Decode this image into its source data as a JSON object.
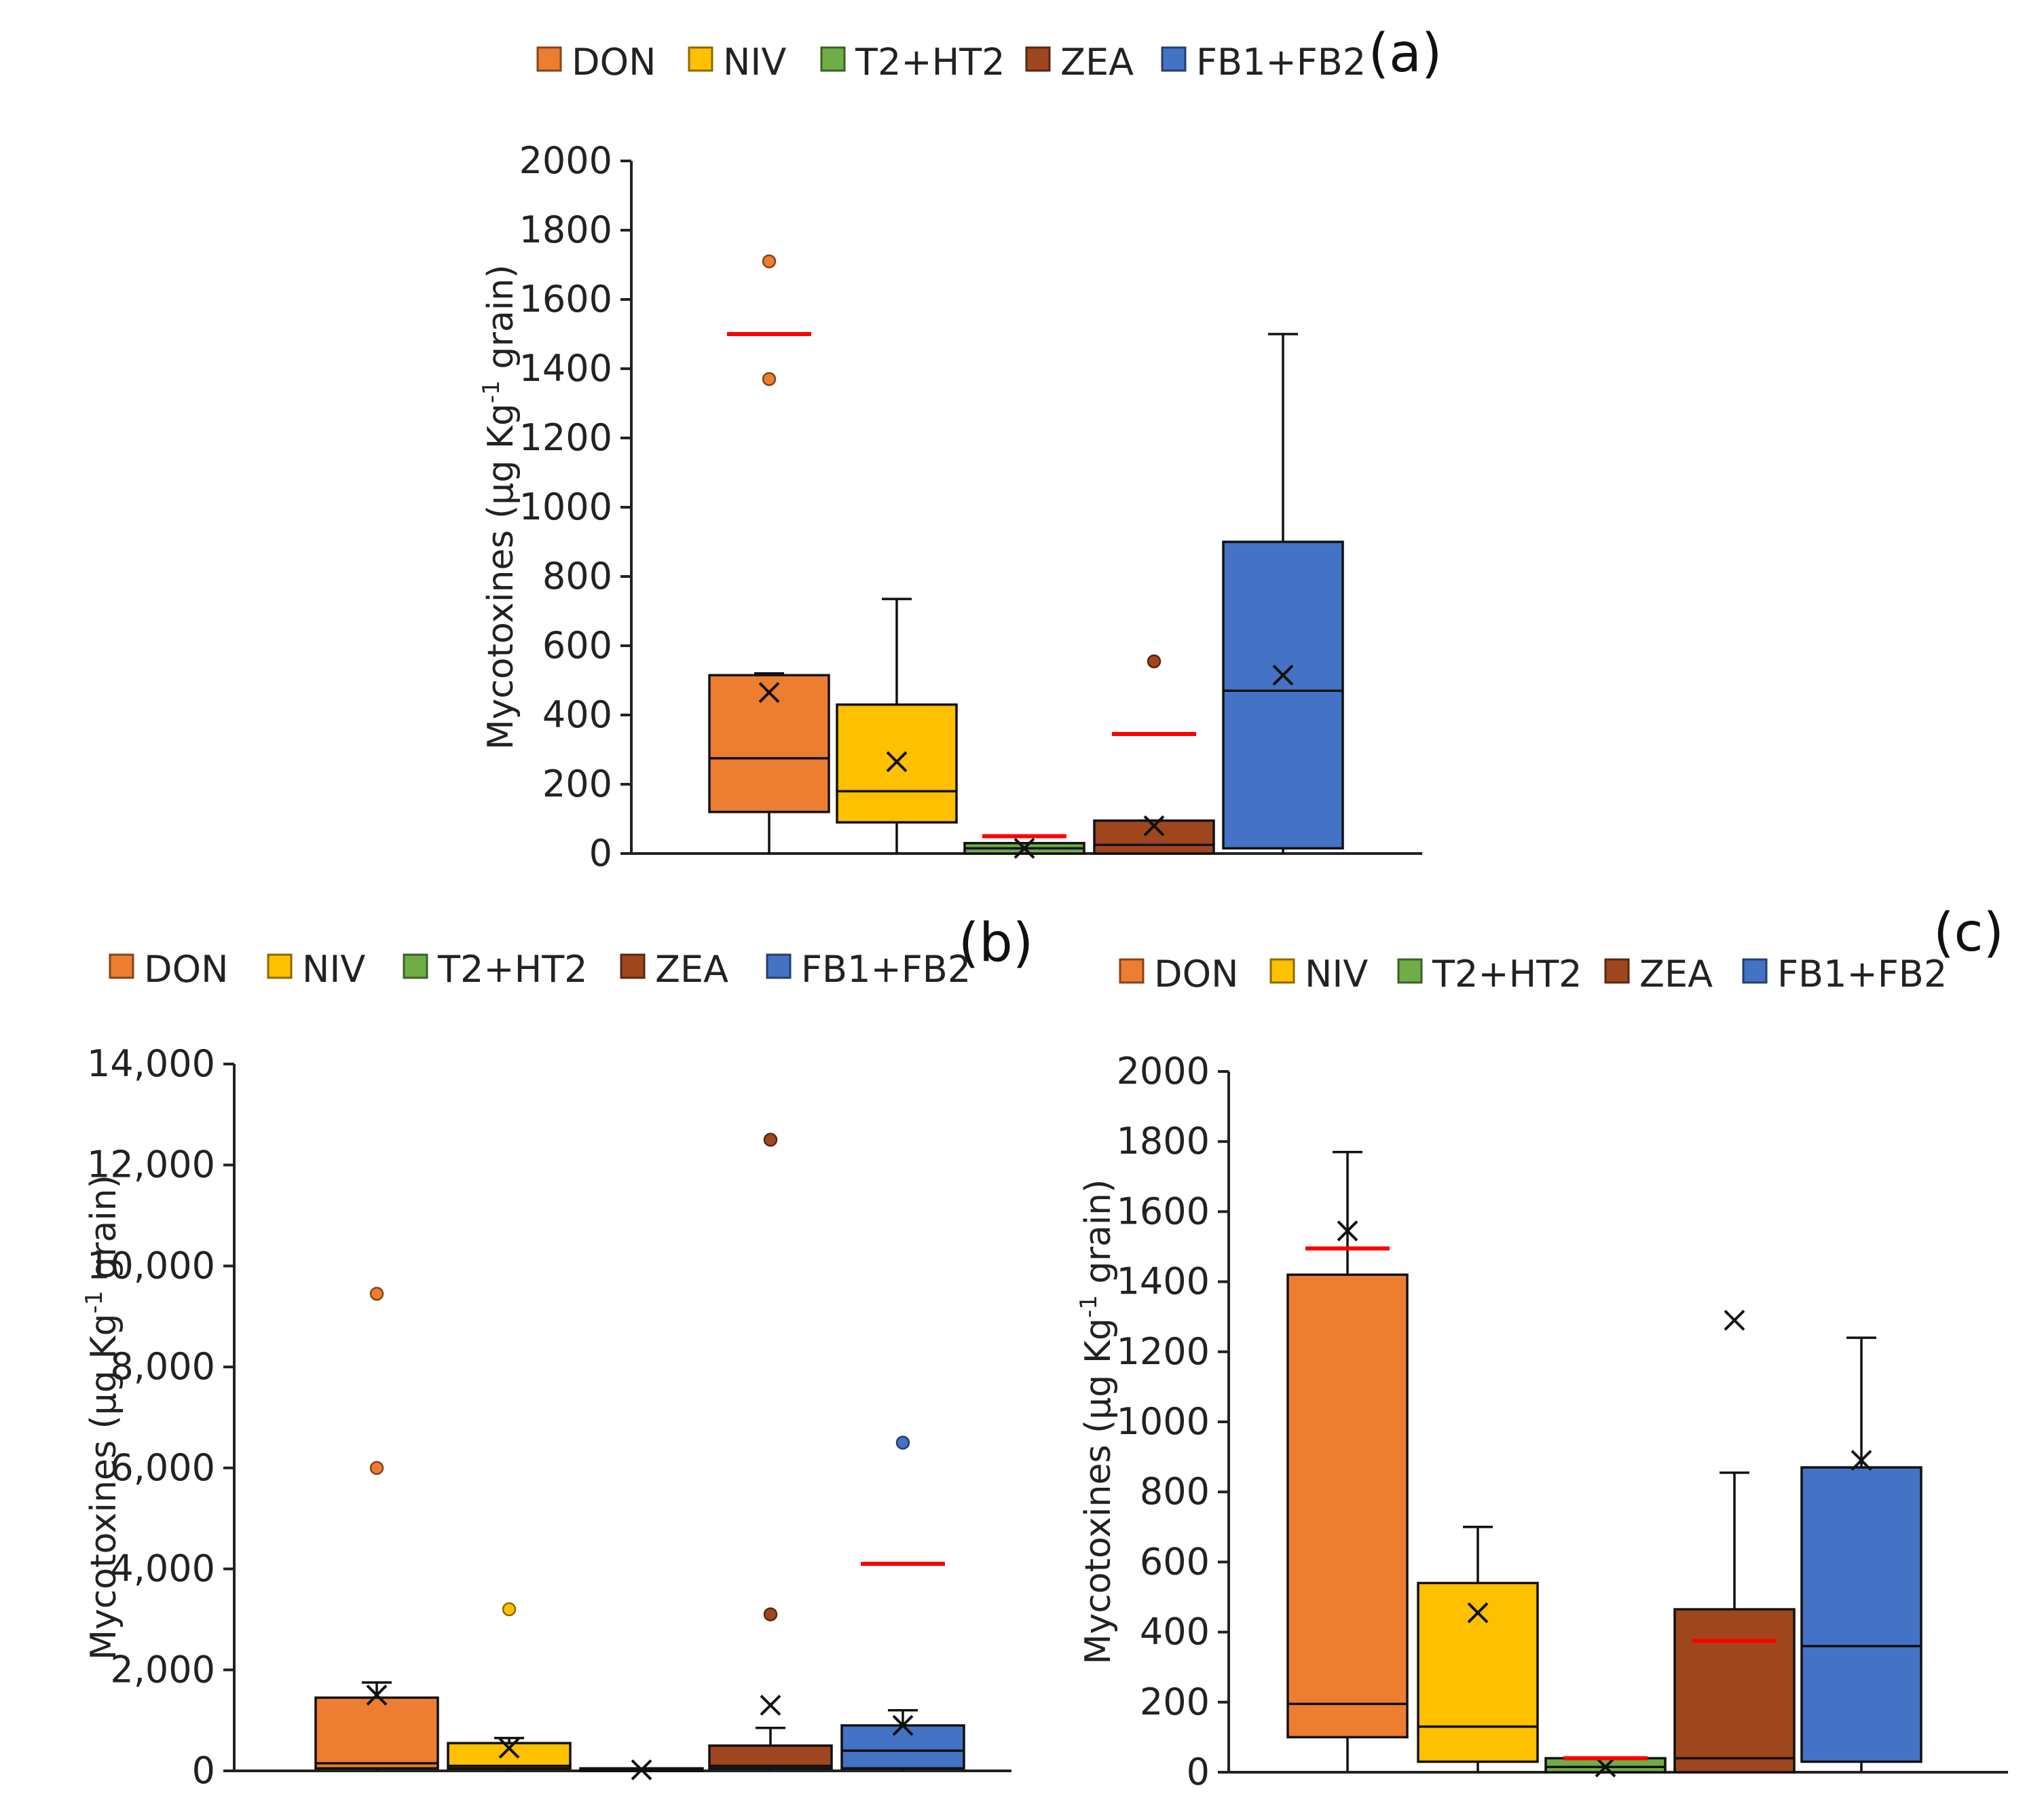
{
  "chart_data": [
    {
      "panel": "(a)",
      "type": "box",
      "ylabel": "Mycotoxines (µg Kg-1 grain)",
      "ylim": [
        0,
        2000
      ],
      "ytick_labels": [
        "0",
        "200",
        "400",
        "600",
        "800",
        "1000",
        "1200",
        "1400",
        "1600",
        "1800",
        "2000"
      ],
      "legend": [
        "DON",
        "NIV",
        "T2+HT2",
        "ZEA",
        "FB1+FB2"
      ],
      "boxes": [
        {
          "name": "DON",
          "q1": 120,
          "median": 275,
          "q3": 515,
          "whisker_low": 0,
          "whisker_high": 520,
          "mean": 465,
          "outliers": [
            1710,
            1370
          ],
          "red_line": 1500
        },
        {
          "name": "NIV",
          "q1": 90,
          "median": 180,
          "q3": 430,
          "whisker_low": 0,
          "whisker_high": 735,
          "mean": 265,
          "outliers": [],
          "red_line": null
        },
        {
          "name": "T2+HT2",
          "q1": 0,
          "median": 15,
          "q3": 30,
          "whisker_low": 0,
          "whisker_high": 30,
          "mean": 15,
          "outliers": [],
          "red_line": 50
        },
        {
          "name": "ZEA",
          "q1": 0,
          "median": 25,
          "q3": 95,
          "whisker_low": 0,
          "whisker_high": 95,
          "mean": 80,
          "outliers": [
            555
          ],
          "red_line": 345
        },
        {
          "name": "FB1+FB2",
          "q1": 15,
          "median": 470,
          "q3": 900,
          "whisker_low": 0,
          "whisker_high": 1500,
          "mean": 515,
          "outliers": [],
          "red_line": null
        }
      ]
    },
    {
      "panel": "(b)",
      "type": "box",
      "ylabel": "Mycotoxines (µg Kg-1 grain)",
      "ylim": [
        0,
        14000
      ],
      "ytick_labels": [
        "0",
        "2,000",
        "4,000",
        "6,000",
        "8,000",
        "10,000",
        "12,000",
        "14,000"
      ],
      "legend": [
        "DON",
        "NIV",
        "T2+HT2",
        "ZEA",
        "FB1+FB2"
      ],
      "boxes": [
        {
          "name": "DON",
          "q1": 50,
          "median": 150,
          "q3": 1450,
          "whisker_low": 0,
          "whisker_high": 1750,
          "mean": 1500,
          "outliers": [
            9450,
            6000
          ],
          "red_line": null
        },
        {
          "name": "NIV",
          "q1": 50,
          "median": 100,
          "q3": 550,
          "whisker_low": 0,
          "whisker_high": 650,
          "mean": 450,
          "outliers": [
            3200
          ],
          "red_line": null
        },
        {
          "name": "T2+HT2",
          "q1": 0,
          "median": 20,
          "q3": 50,
          "whisker_low": 0,
          "whisker_high": 50,
          "mean": 20,
          "outliers": [],
          "red_line": null
        },
        {
          "name": "ZEA",
          "q1": 50,
          "median": 100,
          "q3": 500,
          "whisker_low": 0,
          "whisker_high": 850,
          "mean": 1300,
          "outliers": [
            12500,
            3100
          ],
          "red_line": null
        },
        {
          "name": "FB1+FB2",
          "q1": 50,
          "median": 400,
          "q3": 900,
          "whisker_low": 0,
          "whisker_high": 1200,
          "mean": 900,
          "outliers": [
            6500
          ],
          "red_line": 4100
        }
      ]
    },
    {
      "panel": "(c)",
      "type": "box",
      "ylabel": "Mycotoxines (µg Kg-1 grain)",
      "ylim": [
        0,
        2000
      ],
      "ytick_labels": [
        "0",
        "200",
        "400",
        "600",
        "800",
        "1000",
        "1200",
        "1400",
        "1600",
        "1800",
        "2000"
      ],
      "legend": [
        "DON",
        "NIV",
        "T2+HT2",
        "ZEA",
        "FB1+FB2"
      ],
      "boxes": [
        {
          "name": "DON",
          "q1": 100,
          "median": 195,
          "q3": 1420,
          "whisker_low": 0,
          "whisker_high": 1770,
          "mean": 1545,
          "outliers": [],
          "red_line": 1495
        },
        {
          "name": "NIV",
          "q1": 30,
          "median": 130,
          "q3": 540,
          "whisker_low": 0,
          "whisker_high": 700,
          "mean": 455,
          "outliers": [],
          "red_line": null
        },
        {
          "name": "T2+HT2",
          "q1": 0,
          "median": 15,
          "q3": 40,
          "whisker_low": 0,
          "whisker_high": 40,
          "mean": 15,
          "outliers": [],
          "red_line": 40
        },
        {
          "name": "ZEA",
          "q1": 0,
          "median": 40,
          "q3": 465,
          "whisker_low": 0,
          "whisker_high": 855,
          "mean": 1290,
          "outliers": [],
          "red_line": 375
        },
        {
          "name": "FB1+FB2",
          "q1": 30,
          "median": 360,
          "q3": 870,
          "whisker_low": 0,
          "whisker_high": 1240,
          "mean": 890,
          "outliers": [],
          "red_line": null
        }
      ]
    }
  ],
  "colors": {
    "DON": "#ED7D31",
    "NIV": "#FFC000",
    "T2+HT2": "#70AD47",
    "ZEA": "#A0461E",
    "FB1+FB2": "#4472C4",
    "red_line": "#FF0000"
  }
}
